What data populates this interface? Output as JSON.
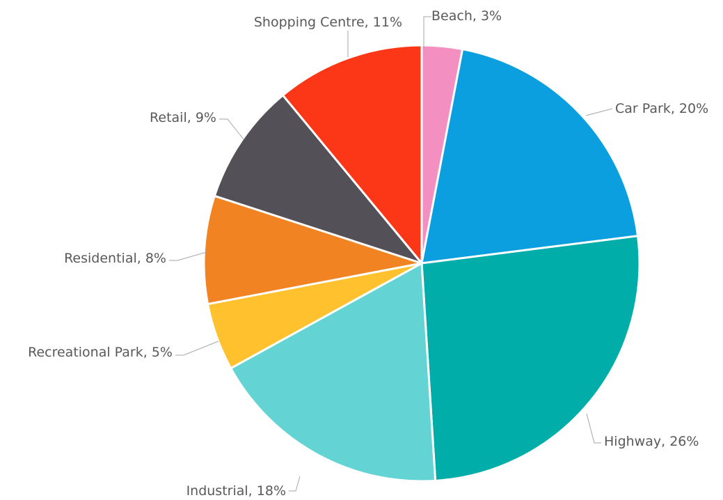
{
  "chart_data": {
    "type": "pie",
    "title": "",
    "start_angle_deg": 0,
    "direction": "clockwise",
    "data_labels": "category, percent",
    "slices": [
      {
        "label": "Beach",
        "value": 3,
        "percent_label": "3%",
        "color": "#F48FC1"
      },
      {
        "label": "Car Park",
        "value": 20,
        "percent_label": "20%",
        "color": "#0C9FE0"
      },
      {
        "label": "Highway",
        "value": 26,
        "percent_label": "26%",
        "color": "#00ADA8"
      },
      {
        "label": "Industrial",
        "value": 18,
        "percent_label": "18%",
        "color": "#63D4D3"
      },
      {
        "label": "Recreational Park",
        "value": 5,
        "percent_label": "5%",
        "color": "#FFC22E"
      },
      {
        "label": "Residential",
        "value": 8,
        "percent_label": "8%",
        "color": "#F28322"
      },
      {
        "label": "Retail",
        "value": 9,
        "percent_label": "9%",
        "color": "#545057"
      },
      {
        "label": "Shopping Centre",
        "value": 11,
        "percent_label": "11%",
        "color": "#FB3718"
      }
    ]
  }
}
